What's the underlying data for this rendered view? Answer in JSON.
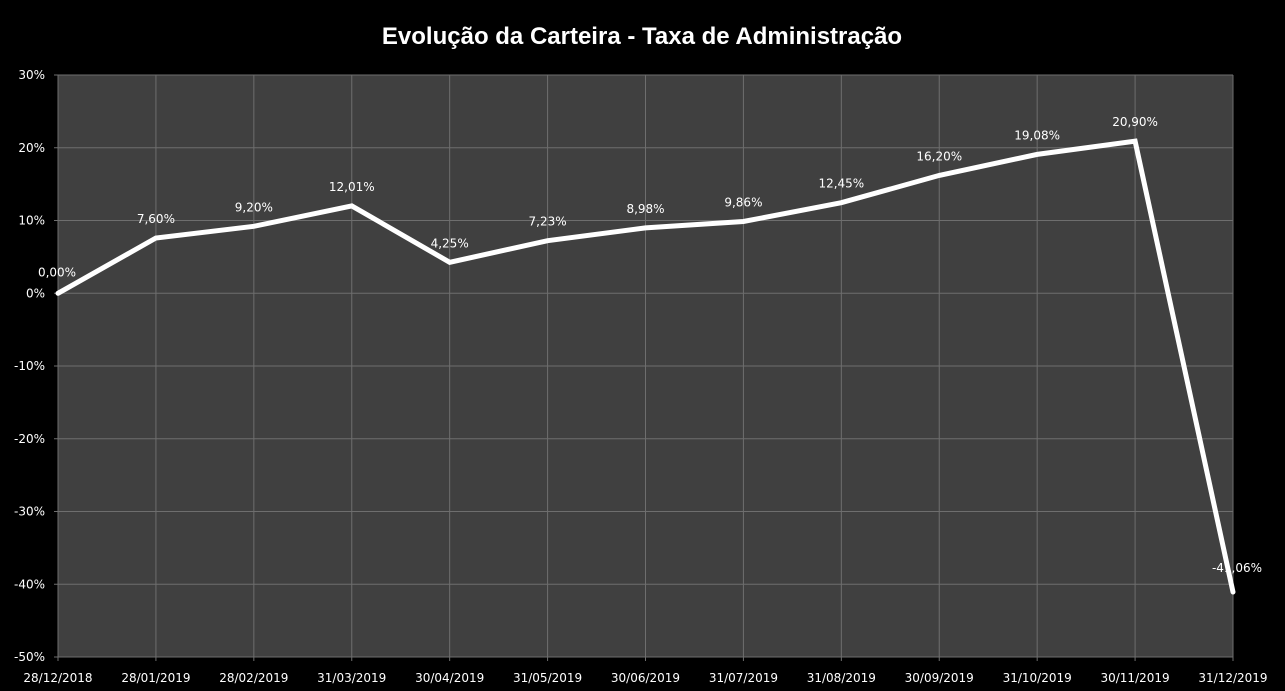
{
  "chart_data": {
    "type": "line",
    "title": "Evolução da Carteira - Taxa de Administração",
    "xlabel": "",
    "ylabel": "",
    "categories": [
      "28/12/2018",
      "28/01/2019",
      "28/02/2019",
      "31/03/2019",
      "30/04/2019",
      "31/05/2019",
      "30/06/2019",
      "31/07/2019",
      "31/08/2019",
      "30/09/2019",
      "31/10/2019",
      "30/11/2019",
      "31/12/2019"
    ],
    "series": [
      {
        "values": [
          0.0,
          7.6,
          9.2,
          12.01,
          4.25,
          7.23,
          8.98,
          9.86,
          12.45,
          16.2,
          19.08,
          20.9,
          -41.06
        ],
        "labels": [
          "0,00%",
          "7,60%",
          "9,20%",
          "12,01%",
          "4,25%",
          "7,23%",
          "8,98%",
          "9,86%",
          "12,45%",
          "16,20%",
          "19,08%",
          "20,90%",
          "-41,06%"
        ]
      }
    ],
    "ylim": [
      -50,
      30
    ],
    "yticks": [
      30,
      20,
      10,
      0,
      -10,
      -20,
      -30,
      -40,
      -50
    ],
    "ytick_labels": [
      "30%",
      "20%",
      "10%",
      "0%",
      "-10%",
      "-20%",
      "-30%",
      "-40%",
      "-50%"
    ],
    "grid": true,
    "legend": "none",
    "colors": {
      "page_background": "#000000",
      "plot_background": "#404040",
      "gridline": "#6e6e6e",
      "line": "#ffffff",
      "text": "#ffffff"
    }
  }
}
